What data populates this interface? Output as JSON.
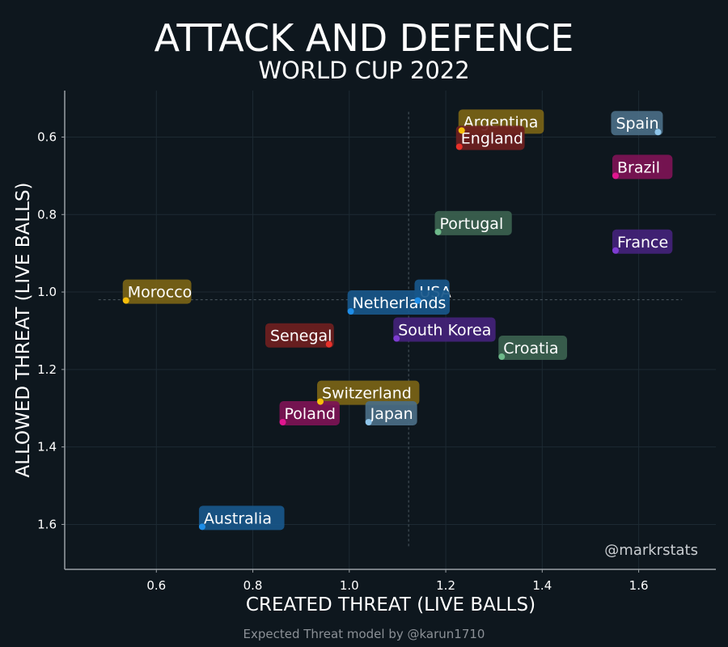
{
  "chart_data": {
    "type": "scatter",
    "title": "ATTACK AND DEFENCE",
    "subtitle": "WORLD CUP 2022",
    "xlabel": "CREATED THREAT (LIVE BALLS)",
    "ylabel": "ALLOWED THREAT (LIVE BALLS)",
    "watermark": "@markrstats",
    "caption": "Expected Threat model by @karun1710",
    "xlim": [
      0.41,
      1.76
    ],
    "ylim": [
      1.716,
      0.48
    ],
    "y_inverted": true,
    "xticks": [
      0.6,
      0.8,
      1.0,
      1.2,
      1.4,
      1.6
    ],
    "xtick_labels": [
      "0.6",
      "0.8",
      "1.0",
      "1.2",
      "1.4",
      "1.6"
    ],
    "yticks": [
      0.6,
      0.8,
      1.0,
      1.2,
      1.4,
      1.6
    ],
    "ytick_labels": [
      "0.6",
      "0.8",
      "1.0",
      "1.2",
      "1.4",
      "1.6"
    ],
    "grid": true,
    "reference_lines": {
      "x_mean": 1.123,
      "y_mean": 1.02,
      "x_span": [
        0.48,
        1.69
      ],
      "y_span": [
        0.535,
        1.66
      ]
    },
    "points": [
      {
        "name": "Argentina",
        "x": 1.233,
        "y": 0.583,
        "color": "#f5be0b",
        "box": "#7a6416",
        "label_side": "right"
      },
      {
        "name": "Spain",
        "x": 1.64,
        "y": 0.587,
        "color": "#8fc5ea",
        "box": "#4a6e86",
        "label_side": "left"
      },
      {
        "name": "England",
        "x": 1.228,
        "y": 0.625,
        "color": "#e8312a",
        "box": "#6e2020",
        "label_side": "right"
      },
      {
        "name": "Brazil",
        "x": 1.552,
        "y": 0.7,
        "color": "#e0168f",
        "box": "#7d1455",
        "label_side": "right"
      },
      {
        "name": "Portugal",
        "x": 1.184,
        "y": 0.845,
        "color": "#6db98a",
        "box": "#3b624f",
        "label_side": "right"
      },
      {
        "name": "France",
        "x": 1.552,
        "y": 0.893,
        "color": "#7e3cd1",
        "box": "#43237a",
        "label_side": "right"
      },
      {
        "name": "Morocco",
        "x": 0.537,
        "y": 1.022,
        "color": "#f5be0b",
        "box": "#7a6416",
        "label_side": "right"
      },
      {
        "name": "USA",
        "x": 1.142,
        "y": 1.022,
        "color": "#1f8ee8",
        "box": "#18578a",
        "label_side": "right"
      },
      {
        "name": "Netherlands",
        "x": 1.003,
        "y": 1.05,
        "color": "#1f8ee8",
        "box": "#18578a",
        "label_side": "right"
      },
      {
        "name": "Senegal",
        "x": 0.958,
        "y": 1.135,
        "color": "#e8312a",
        "box": "#6e2020",
        "label_side": "left"
      },
      {
        "name": "South Korea",
        "x": 1.098,
        "y": 1.12,
        "color": "#7e3cd1",
        "box": "#43237a",
        "label_side": "right"
      },
      {
        "name": "Croatia",
        "x": 1.316,
        "y": 1.167,
        "color": "#6db98a",
        "box": "#3b624f",
        "label_side": "right"
      },
      {
        "name": "Switzerland",
        "x": 0.94,
        "y": 1.283,
        "color": "#f5be0b",
        "box": "#7a6416",
        "label_side": "right"
      },
      {
        "name": "Poland",
        "x": 0.862,
        "y": 1.336,
        "color": "#e0168f",
        "box": "#7d1455",
        "label_side": "right"
      },
      {
        "name": "Japan",
        "x": 1.04,
        "y": 1.336,
        "color": "#8fc5ea",
        "box": "#4a6e86",
        "label_side": "right"
      },
      {
        "name": "Australia",
        "x": 0.695,
        "y": 1.606,
        "color": "#1f8ee8",
        "box": "#18578a",
        "label_side": "right"
      }
    ]
  }
}
